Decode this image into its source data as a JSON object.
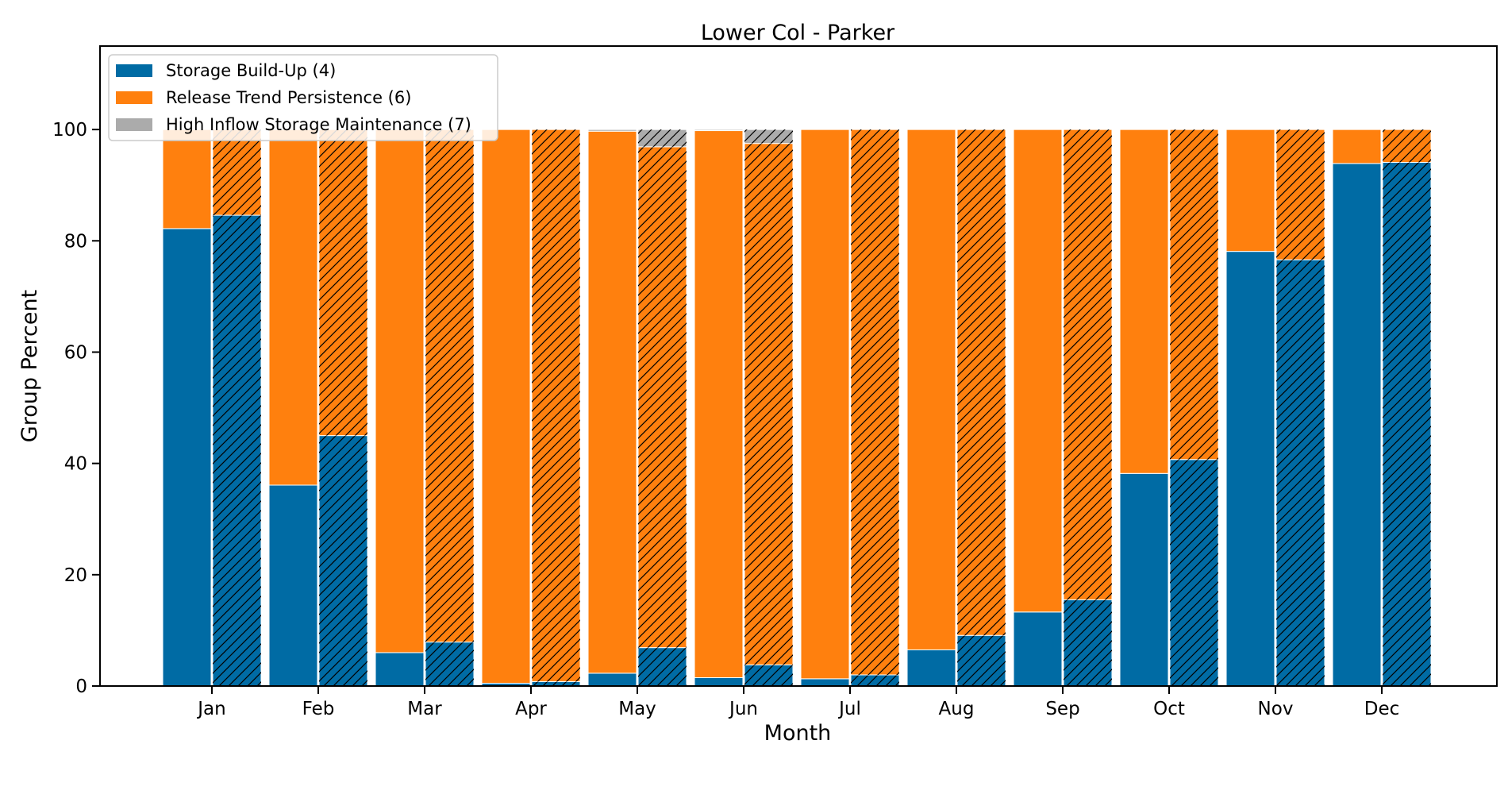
{
  "chart_data": {
    "type": "bar",
    "stacked": true,
    "title": "Lower Col - Parker",
    "xlabel": "Month",
    "ylabel": "Group Percent",
    "ylim": [
      0,
      115
    ],
    "yticks": [
      0,
      20,
      40,
      60,
      80,
      100
    ],
    "categories": [
      "Jan",
      "Feb",
      "Mar",
      "Apr",
      "May",
      "Jun",
      "Jul",
      "Aug",
      "Sep",
      "Oct",
      "Nov",
      "Dec"
    ],
    "legend_position": "top-left",
    "grid": false,
    "bars_per_category": [
      {
        "style": "solid"
      },
      {
        "style": "hatched"
      }
    ],
    "series": [
      {
        "name": "Storage Build-Up (4)",
        "color": "#006BA4",
        "values_solid": [
          82.2,
          36.1,
          6.0,
          0.5,
          2.3,
          1.5,
          1.3,
          6.5,
          13.3,
          38.2,
          78.1,
          93.9
        ],
        "values_hatched": [
          84.6,
          45.0,
          7.9,
          0.8,
          6.9,
          3.8,
          2.0,
          9.1,
          15.5,
          40.7,
          76.6,
          94.1
        ]
      },
      {
        "name": "Release Trend Persistence (6)",
        "color": "#FF800E",
        "values_solid": [
          17.8,
          63.9,
          94.0,
          99.5,
          97.4,
          98.3,
          98.7,
          93.5,
          86.7,
          61.8,
          21.9,
          6.1
        ],
        "values_hatched": [
          15.4,
          55.0,
          92.1,
          99.2,
          90.0,
          93.7,
          98.0,
          90.9,
          84.5,
          59.3,
          23.4,
          5.9
        ]
      },
      {
        "name": "High Inflow Storage Maintenance (7)",
        "color": "#ABABAB",
        "values_solid": [
          0,
          0,
          0,
          0,
          0.3,
          0.2,
          0,
          0,
          0,
          0,
          0,
          0
        ],
        "values_hatched": [
          0,
          0,
          0,
          0,
          3.1,
          2.5,
          0,
          0,
          0,
          0,
          0,
          0
        ]
      }
    ]
  }
}
